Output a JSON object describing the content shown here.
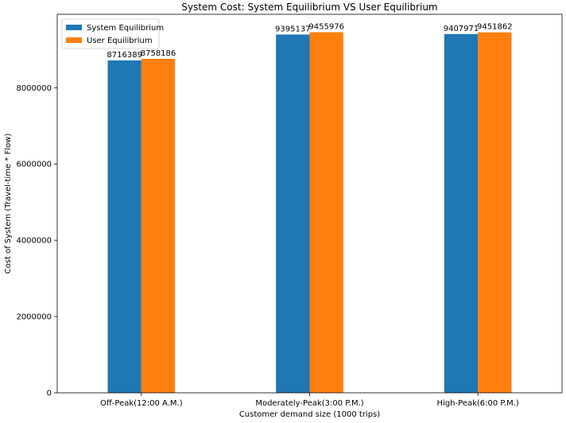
{
  "chart_data": {
    "type": "bar",
    "title": "System Cost: System Equilibrium VS User Equilibrium",
    "xlabel": "Customer demand size (1000 trips)",
    "ylabel": "Cost of System (Travel-time * Flow)",
    "categories": [
      "Off-Peak(12:00 A.M.)",
      "Moderately-Peak(3:00 P.M.)",
      "High-Peak(6:00 P.M.)"
    ],
    "series": [
      {
        "name": "System Equilibrium",
        "values": [
          8716389,
          9395137,
          9407971
        ],
        "color": "#1f77b4"
      },
      {
        "name": "User Equilibrium",
        "values": [
          8758186,
          9455976,
          9451862
        ],
        "color": "#ff7f0e"
      }
    ],
    "ylim": [
      0,
      9925175
    ],
    "yticks": [
      0,
      2000000,
      4000000,
      6000000,
      8000000
    ],
    "grid": false,
    "legend_position": "top-left"
  }
}
